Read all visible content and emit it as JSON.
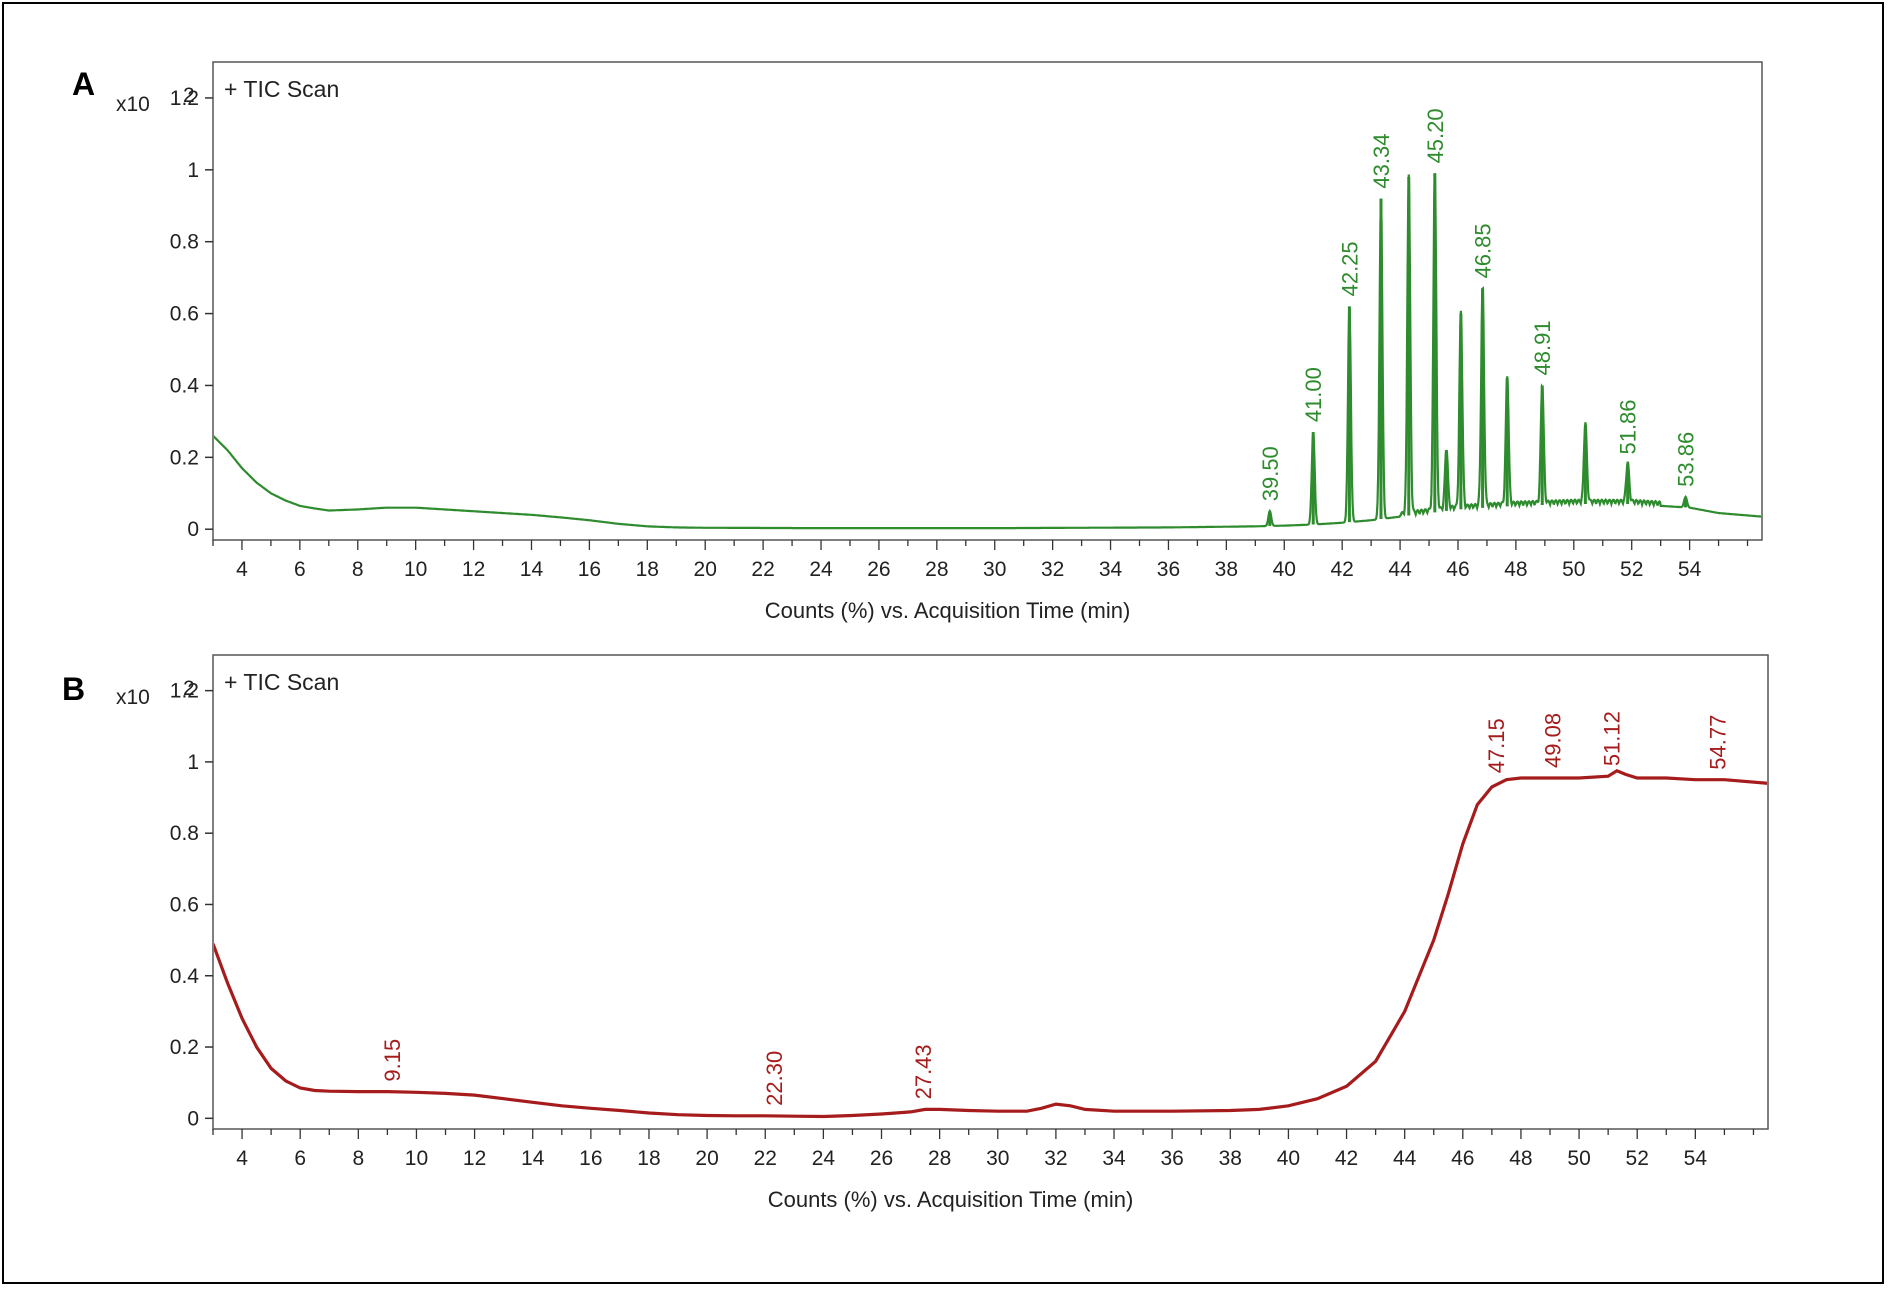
{
  "chart_data": [
    {
      "type": "line",
      "panel": "A",
      "scan_label": "+ TIC Scan",
      "y_multiplier": "x10",
      "y_multiplier_exp": "2",
      "xlabel": "Counts (%) vs. Acquisition Time (min)",
      "xlim": [
        3,
        56.5
      ],
      "ylim": [
        -0.03,
        1.3
      ],
      "x_ticks": [
        4,
        6,
        8,
        10,
        12,
        14,
        16,
        18,
        20,
        22,
        24,
        26,
        28,
        30,
        32,
        34,
        36,
        38,
        40,
        42,
        44,
        46,
        48,
        50,
        52,
        54
      ],
      "y_ticks": [
        {
          "v": 0,
          "t": "0"
        },
        {
          "v": 0.2,
          "t": "0.2"
        },
        {
          "v": 0.4,
          "t": "0.4"
        },
        {
          "v": 0.6,
          "t": "0.6"
        },
        {
          "v": 0.8,
          "t": "0.8"
        },
        {
          "v": 1,
          "t": "1"
        },
        {
          "v": 1.2,
          "t": "1.2"
        }
      ],
      "color": "#2e8b2e",
      "grid": false,
      "baseline": [
        [
          3,
          0.26
        ],
        [
          3.5,
          0.22
        ],
        [
          4,
          0.17
        ],
        [
          4.5,
          0.13
        ],
        [
          5,
          0.1
        ],
        [
          5.5,
          0.08
        ],
        [
          6,
          0.065
        ],
        [
          6.5,
          0.058
        ],
        [
          7,
          0.052
        ],
        [
          8,
          0.055
        ],
        [
          9,
          0.06
        ],
        [
          10,
          0.06
        ],
        [
          11,
          0.055
        ],
        [
          12,
          0.05
        ],
        [
          13,
          0.045
        ],
        [
          14,
          0.04
        ],
        [
          15,
          0.033
        ],
        [
          16,
          0.025
        ],
        [
          17,
          0.015
        ],
        [
          18,
          0.008
        ],
        [
          19,
          0.005
        ],
        [
          20,
          0.004
        ],
        [
          24,
          0.003
        ],
        [
          30,
          0.003
        ],
        [
          36,
          0.005
        ],
        [
          38,
          0.007
        ],
        [
          39,
          0.008
        ],
        [
          40,
          0.01
        ],
        [
          41,
          0.013
        ],
        [
          42,
          0.018
        ],
        [
          43,
          0.025
        ],
        [
          44,
          0.035
        ],
        [
          45,
          0.045
        ],
        [
          46,
          0.055
        ],
        [
          48,
          0.065
        ],
        [
          50,
          0.07
        ],
        [
          52,
          0.07
        ],
        [
          54,
          0.06
        ],
        [
          55,
          0.045
        ],
        [
          56.5,
          0.035
        ]
      ],
      "peaks": [
        {
          "x": 39.5,
          "y": 0.05,
          "label": "39.50"
        },
        {
          "x": 41.0,
          "y": 0.27,
          "label": "41.00"
        },
        {
          "x": 42.25,
          "y": 0.62,
          "label": "42.25"
        },
        {
          "x": 43.34,
          "y": 0.92,
          "label": "43.34"
        },
        {
          "x": 44.3,
          "y": 0.98,
          "label": ""
        },
        {
          "x": 45.2,
          "y": 0.99,
          "label": "45.20"
        },
        {
          "x": 45.6,
          "y": 0.22,
          "label": ""
        },
        {
          "x": 46.1,
          "y": 0.6,
          "label": ""
        },
        {
          "x": 46.85,
          "y": 0.67,
          "label": "46.85"
        },
        {
          "x": 47.7,
          "y": 0.42,
          "label": ""
        },
        {
          "x": 48.91,
          "y": 0.4,
          "label": "48.91"
        },
        {
          "x": 50.4,
          "y": 0.29,
          "label": ""
        },
        {
          "x": 51.86,
          "y": 0.18,
          "label": "51.86"
        },
        {
          "x": 53.86,
          "y": 0.09,
          "label": "53.86"
        }
      ]
    },
    {
      "type": "line",
      "panel": "B",
      "scan_label": "+ TIC Scan",
      "y_multiplier": "x10",
      "y_multiplier_exp": "2",
      "xlabel": "Counts (%) vs. Acquisition Time (min)",
      "xlim": [
        3,
        56.5
      ],
      "ylim": [
        -0.03,
        1.3
      ],
      "x_ticks": [
        4,
        6,
        8,
        10,
        12,
        14,
        16,
        18,
        20,
        22,
        24,
        26,
        28,
        30,
        32,
        34,
        36,
        38,
        40,
        42,
        44,
        46,
        48,
        50,
        52,
        54
      ],
      "y_ticks": [
        {
          "v": 0,
          "t": "0"
        },
        {
          "v": 0.2,
          "t": "0.2"
        },
        {
          "v": 0.4,
          "t": "0.4"
        },
        {
          "v": 0.6,
          "t": "0.6"
        },
        {
          "v": 0.8,
          "t": "0.8"
        },
        {
          "v": 1,
          "t": "1"
        },
        {
          "v": 1.2,
          "t": "1.2"
        }
      ],
      "color": "#a61c1c",
      "grid": false,
      "trace": [
        [
          3,
          0.49
        ],
        [
          3.5,
          0.38
        ],
        [
          4,
          0.28
        ],
        [
          4.5,
          0.2
        ],
        [
          5,
          0.14
        ],
        [
          5.5,
          0.105
        ],
        [
          6,
          0.085
        ],
        [
          6.5,
          0.078
        ],
        [
          7,
          0.076
        ],
        [
          8,
          0.075
        ],
        [
          9,
          0.075
        ],
        [
          10,
          0.073
        ],
        [
          11,
          0.07
        ],
        [
          12,
          0.065
        ],
        [
          13,
          0.055
        ],
        [
          14,
          0.045
        ],
        [
          15,
          0.035
        ],
        [
          16,
          0.028
        ],
        [
          17,
          0.022
        ],
        [
          18,
          0.015
        ],
        [
          19,
          0.01
        ],
        [
          20,
          0.008
        ],
        [
          21,
          0.007
        ],
        [
          22,
          0.007
        ],
        [
          23,
          0.006
        ],
        [
          24,
          0.005
        ],
        [
          25,
          0.008
        ],
        [
          26,
          0.012
        ],
        [
          27,
          0.018
        ],
        [
          27.5,
          0.025
        ],
        [
          28,
          0.025
        ],
        [
          29,
          0.022
        ],
        [
          30,
          0.02
        ],
        [
          31,
          0.02
        ],
        [
          31.5,
          0.028
        ],
        [
          32,
          0.04
        ],
        [
          32.5,
          0.035
        ],
        [
          33,
          0.025
        ],
        [
          34,
          0.02
        ],
        [
          36,
          0.02
        ],
        [
          38,
          0.022
        ],
        [
          39,
          0.025
        ],
        [
          40,
          0.035
        ],
        [
          41,
          0.055
        ],
        [
          42,
          0.09
        ],
        [
          43,
          0.16
        ],
        [
          44,
          0.3
        ],
        [
          45,
          0.5
        ],
        [
          45.5,
          0.63
        ],
        [
          46,
          0.77
        ],
        [
          46.5,
          0.88
        ],
        [
          47,
          0.93
        ],
        [
          47.5,
          0.95
        ],
        [
          48,
          0.955
        ],
        [
          49,
          0.955
        ],
        [
          50,
          0.955
        ],
        [
          51,
          0.96
        ],
        [
          51.3,
          0.975
        ],
        [
          51.6,
          0.965
        ],
        [
          52,
          0.955
        ],
        [
          53,
          0.955
        ],
        [
          54,
          0.95
        ],
        [
          55,
          0.95
        ],
        [
          56.5,
          0.94
        ]
      ],
      "peaks": [
        {
          "x": 9.15,
          "y": 0.075,
          "label": "9.15"
        },
        {
          "x": 22.3,
          "y": 0.007,
          "label": "22.30"
        },
        {
          "x": 27.43,
          "y": 0.025,
          "label": "27.43"
        },
        {
          "x": 47.15,
          "y": 0.94,
          "label": "47.15"
        },
        {
          "x": 49.08,
          "y": 0.955,
          "label": "49.08"
        },
        {
          "x": 51.12,
          "y": 0.96,
          "label": "51.12"
        },
        {
          "x": 54.77,
          "y": 0.95,
          "label": "54.77"
        }
      ]
    }
  ]
}
